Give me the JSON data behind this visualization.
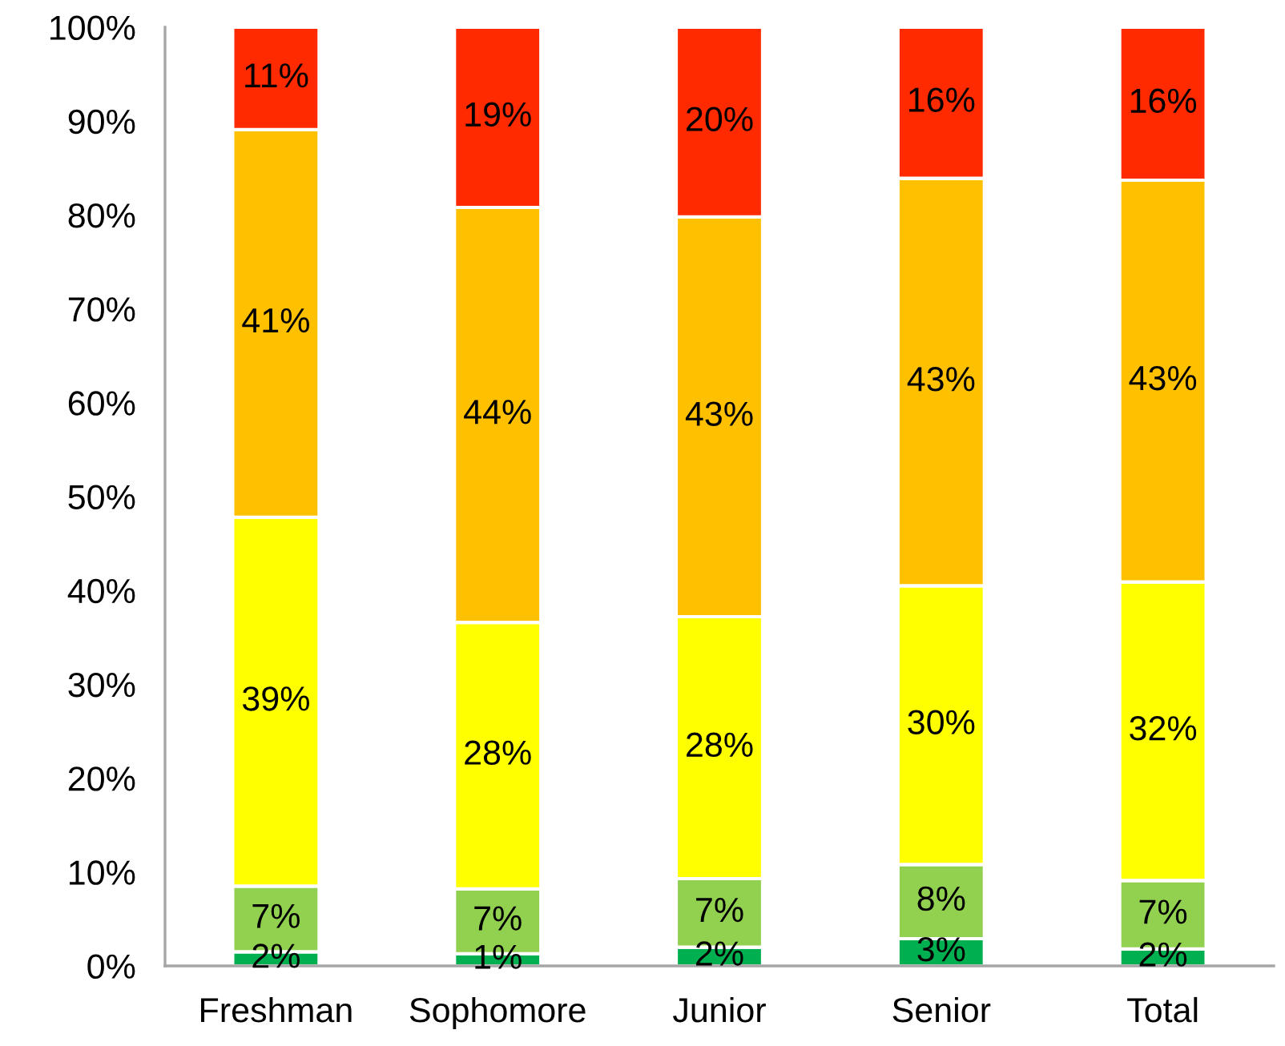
{
  "chart_data": {
    "type": "bar",
    "stacked": true,
    "categories": [
      "Freshman",
      "Sophomore",
      "Junior",
      "Senior",
      "Total"
    ],
    "series": [
      {
        "color": "#00b050",
        "values": [
          1.5,
          1.3,
          2.0,
          2.9,
          1.8
        ],
        "value_labels": [
          "2%",
          "1%",
          "2%",
          "3%",
          "2%"
        ]
      },
      {
        "color": "#92d050",
        "values": [
          7.0,
          6.9,
          7.3,
          7.9,
          7.3
        ],
        "value_labels": [
          "7%",
          "7%",
          "7%",
          "8%",
          "7%"
        ]
      },
      {
        "color": "#ffff00",
        "values": [
          39.3,
          28.4,
          27.9,
          29.7,
          31.8
        ],
        "value_labels": [
          "39%",
          "28%",
          "28%",
          "30%",
          "32%"
        ]
      },
      {
        "color": "#ffc000",
        "values": [
          41.3,
          44.2,
          42.6,
          43.4,
          42.8
        ],
        "value_labels": [
          "41%",
          "44%",
          "43%",
          "43%",
          "43%"
        ]
      },
      {
        "color": "#ff2a00",
        "values": [
          10.9,
          19.2,
          20.2,
          16.1,
          16.3
        ],
        "value_labels": [
          "11%",
          "19%",
          "20%",
          "16%",
          "16%"
        ]
      }
    ],
    "ylim": [
      0,
      100
    ],
    "yticks": [
      {
        "value": 0,
        "label": "0%"
      },
      {
        "value": 10,
        "label": "10%"
      },
      {
        "value": 20,
        "label": "20%"
      },
      {
        "value": 30,
        "label": "30%"
      },
      {
        "value": 40,
        "label": "40%"
      },
      {
        "value": 50,
        "label": "50%"
      },
      {
        "value": 60,
        "label": "60%"
      },
      {
        "value": 70,
        "label": "70%"
      },
      {
        "value": 80,
        "label": "80%"
      },
      {
        "value": 90,
        "label": "90%"
      },
      {
        "value": 100,
        "label": "100%"
      }
    ]
  }
}
